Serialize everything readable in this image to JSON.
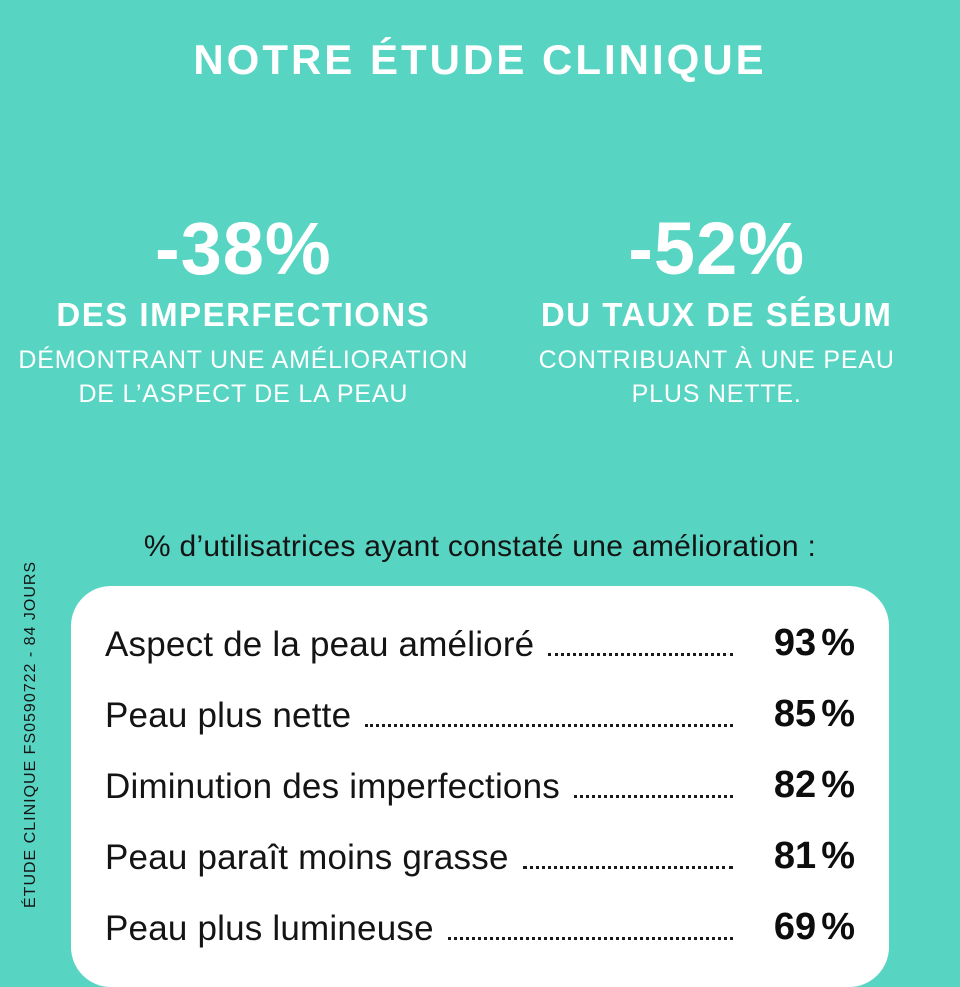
{
  "colors": {
    "background": "#58D4C3",
    "card": "#FFFFFF",
    "light_text": "#FFFFFF",
    "dark_text": "#141414"
  },
  "header": {
    "title": "NOTRE ÉTUDE CLINIQUE"
  },
  "stats": [
    {
      "value": "-38%",
      "headline": "DES IMPERFECTIONS",
      "description": "DÉMONTRANT UNE AMÉLIORATION\nDE L’ASPECT DE LA PEAU"
    },
    {
      "value": "-52%",
      "headline": "DU TAUX DE SÉBUM",
      "description": "CONTRIBUANT À UNE PEAU\nPLUS NETTE."
    }
  ],
  "results": {
    "heading": "% d’utilisatrices ayant constaté une amélioration :",
    "rows": [
      {
        "label": "Aspect de la peau amélioré",
        "value": "93",
        "unit": "%"
      },
      {
        "label": "Peau plus nette",
        "value": "85",
        "unit": "%"
      },
      {
        "label": "Diminution des imperfections",
        "value": "82",
        "unit": "%"
      },
      {
        "label": "Peau paraît moins grasse",
        "value": "81",
        "unit": "%"
      },
      {
        "label": "Peau plus lumineuse",
        "value": "69",
        "unit": "%"
      }
    ]
  },
  "footnote": "ÉTUDE CLINIQUE FS0590722 - 84 JOURS",
  "chart_data": {
    "type": "table",
    "title": "NOTRE ÉTUDE CLINIQUE",
    "subtitle": "% d’utilisatrices ayant constaté une amélioration :",
    "highlight_stats": [
      {
        "value": -38,
        "unit": "%",
        "label": "DES IMPERFECTIONS",
        "note": "DÉMONTRANT UNE AMÉLIORATION DE L’ASPECT DE LA PEAU"
      },
      {
        "value": -52,
        "unit": "%",
        "label": "DU TAUX DE SÉBUM",
        "note": "CONTRIBUANT À UNE PEAU PLUS NETTE."
      }
    ],
    "categories": [
      "Aspect de la peau amélioré",
      "Peau plus nette",
      "Diminution des imperfections",
      "Peau paraît moins grasse",
      "Peau plus lumineuse"
    ],
    "values": [
      93,
      85,
      82,
      81,
      69
    ],
    "unit": "%",
    "footnote": "ÉTUDE CLINIQUE FS0590722 - 84 JOURS"
  }
}
